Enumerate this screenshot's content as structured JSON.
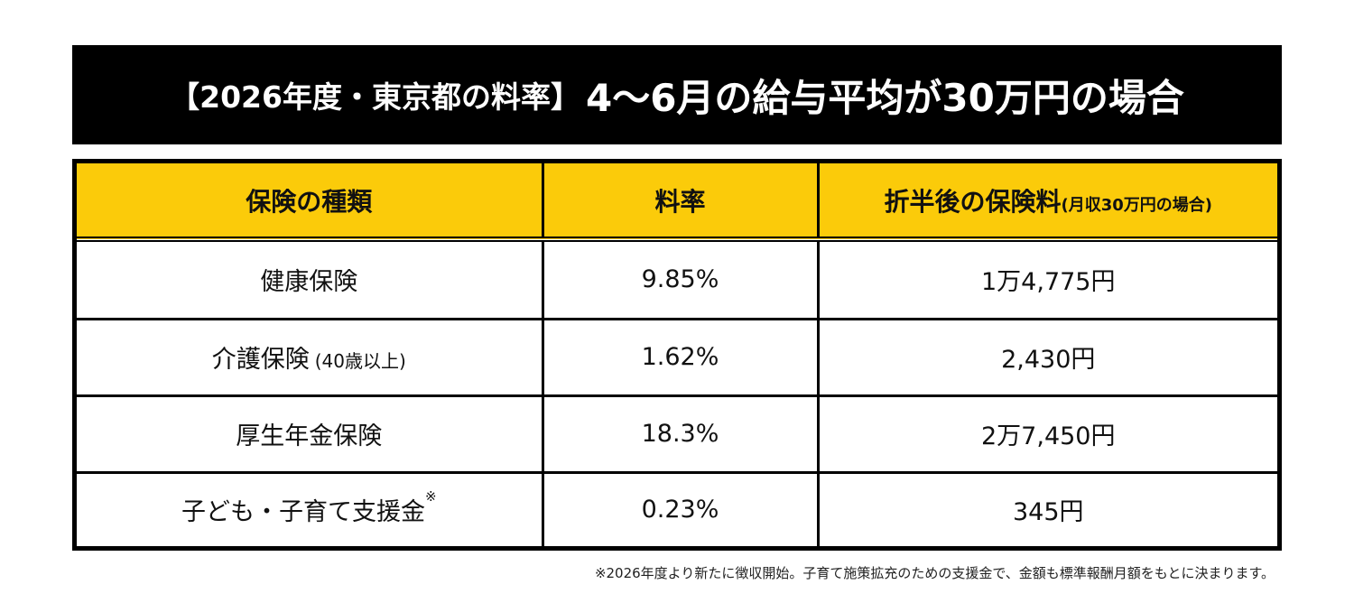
{
  "title": {
    "prefix": "【2026年度・東京都の料率】",
    "main": "4〜6月の給与平均が30万円の場合"
  },
  "table": {
    "headers": {
      "type": "保険の種類",
      "rate": "料率",
      "half": "折半後の保険料",
      "half_note": "(月収30万円の場合)"
    },
    "rows": [
      {
        "type": "健康保険",
        "note": "",
        "mark": "",
        "rate": "9.85%",
        "amount": "1万4,775円"
      },
      {
        "type": "介護保険",
        "note": "(40歳以上)",
        "mark": "",
        "rate": "1.62%",
        "amount": "2,430円"
      },
      {
        "type": "厚生年金保険",
        "note": "",
        "mark": "",
        "rate": "18.3%",
        "amount": "2万7,450円"
      },
      {
        "type": "子ども・子育て支援金",
        "note": "",
        "mark": "※",
        "rate": "0.23%",
        "amount": "345円"
      }
    ]
  },
  "footnote": "※2026年度より新たに徴収開始。子育て施策拡充のための支援金で、金額も標準報酬月額をもとに決まります。"
}
